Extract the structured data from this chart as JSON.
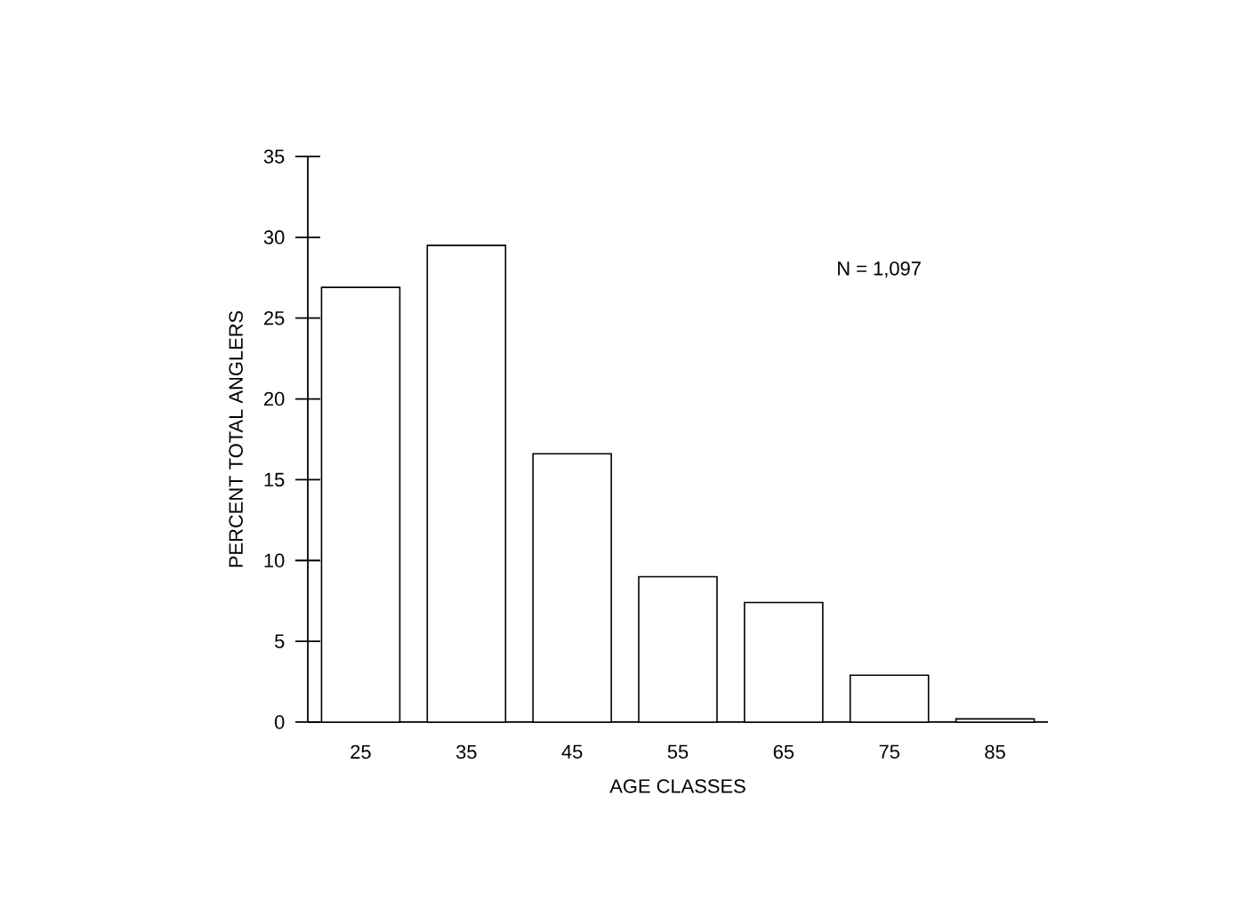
{
  "chart_data": {
    "type": "bar",
    "xlabel": "AGE CLASSES",
    "ylabel": "PERCENT TOTAL ANGLERS",
    "categories": [
      "25",
      "35",
      "45",
      "55",
      "65",
      "75",
      "85"
    ],
    "values": [
      26.9,
      29.5,
      16.6,
      9.0,
      7.4,
      2.9,
      0.2
    ],
    "color": "#ffffff",
    "ylim": [
      0,
      35
    ],
    "yticks": [
      0,
      5,
      10,
      15,
      20,
      25,
      30,
      35
    ],
    "annotations": [
      "N = 1,097"
    ]
  }
}
